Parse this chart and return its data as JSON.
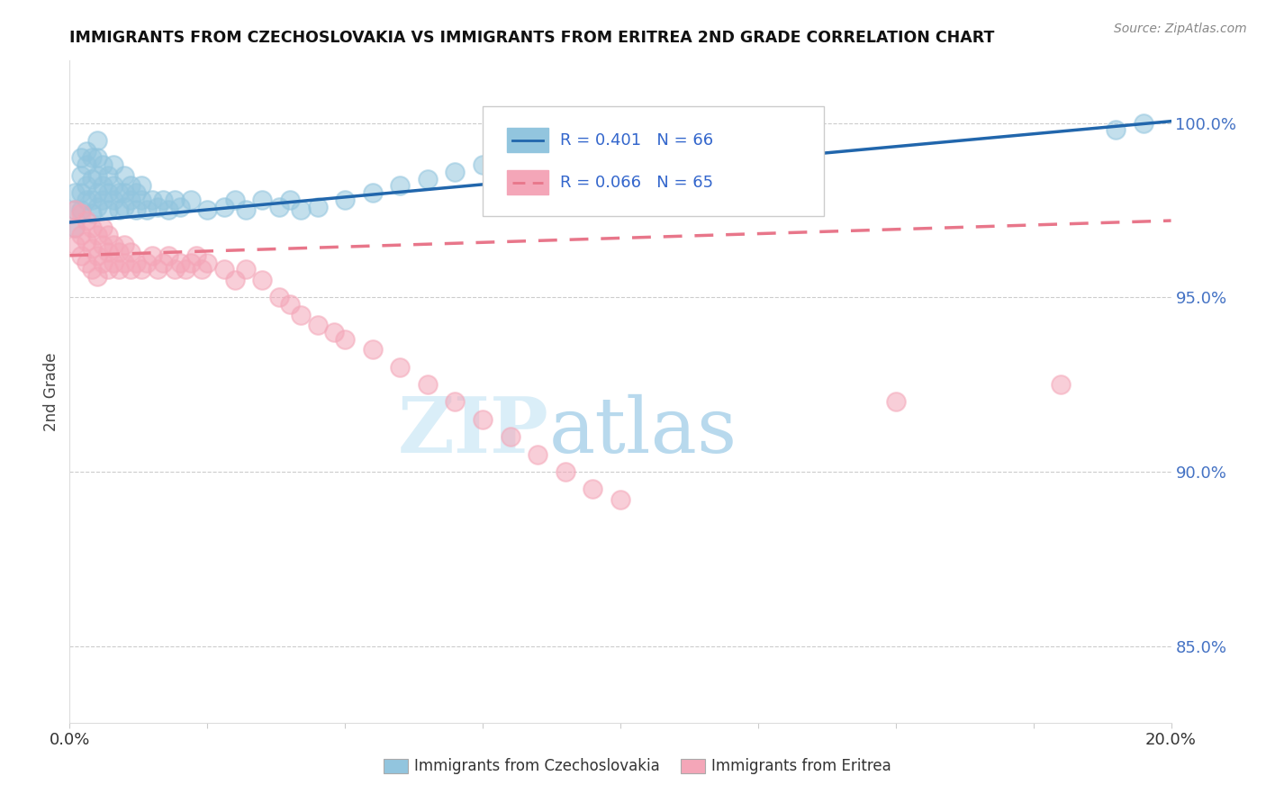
{
  "title": "IMMIGRANTS FROM CZECHOSLOVAKIA VS IMMIGRANTS FROM ERITREA 2ND GRADE CORRELATION CHART",
  "source": "Source: ZipAtlas.com",
  "ylabel": "2nd Grade",
  "label_blue": "Immigrants from Czechoslovakia",
  "label_pink": "Immigrants from Eritrea",
  "blue_color": "#92c5de",
  "pink_color": "#f4a6b8",
  "trend_blue_color": "#2166ac",
  "trend_pink_color": "#e8768a",
  "legend_blue_R": "R = 0.401",
  "legend_blue_N": "N = 66",
  "legend_pink_R": "R = 0.066",
  "legend_pink_N": "N = 65",
  "right_yticks": [
    85.0,
    90.0,
    95.0,
    100.0
  ],
  "xmin": 0.0,
  "xmax": 0.2,
  "ymin": 0.828,
  "ymax": 1.018,
  "blue_scatter_x": [
    0.001,
    0.001,
    0.001,
    0.002,
    0.002,
    0.002,
    0.002,
    0.003,
    0.003,
    0.003,
    0.003,
    0.004,
    0.004,
    0.004,
    0.004,
    0.005,
    0.005,
    0.005,
    0.005,
    0.005,
    0.006,
    0.006,
    0.006,
    0.007,
    0.007,
    0.007,
    0.008,
    0.008,
    0.008,
    0.009,
    0.009,
    0.01,
    0.01,
    0.01,
    0.011,
    0.011,
    0.012,
    0.012,
    0.013,
    0.013,
    0.014,
    0.015,
    0.016,
    0.017,
    0.018,
    0.019,
    0.02,
    0.022,
    0.025,
    0.028,
    0.03,
    0.032,
    0.035,
    0.038,
    0.04,
    0.042,
    0.045,
    0.05,
    0.055,
    0.06,
    0.065,
    0.07,
    0.075,
    0.08,
    0.19,
    0.195
  ],
  "blue_scatter_y": [
    0.97,
    0.975,
    0.98,
    0.975,
    0.98,
    0.985,
    0.99,
    0.978,
    0.982,
    0.988,
    0.992,
    0.974,
    0.978,
    0.984,
    0.99,
    0.976,
    0.98,
    0.985,
    0.99,
    0.995,
    0.978,
    0.982,
    0.988,
    0.975,
    0.98,
    0.985,
    0.978,
    0.982,
    0.988,
    0.975,
    0.98,
    0.976,
    0.98,
    0.985,
    0.978,
    0.982,
    0.975,
    0.98,
    0.978,
    0.982,
    0.975,
    0.978,
    0.976,
    0.978,
    0.975,
    0.978,
    0.976,
    0.978,
    0.975,
    0.976,
    0.978,
    0.975,
    0.978,
    0.976,
    0.978,
    0.975,
    0.976,
    0.978,
    0.98,
    0.982,
    0.984,
    0.986,
    0.988,
    0.99,
    0.998,
    1.0
  ],
  "pink_scatter_x": [
    0.001,
    0.001,
    0.001,
    0.002,
    0.002,
    0.002,
    0.003,
    0.003,
    0.003,
    0.004,
    0.004,
    0.004,
    0.005,
    0.005,
    0.005,
    0.006,
    0.006,
    0.006,
    0.007,
    0.007,
    0.007,
    0.008,
    0.008,
    0.009,
    0.009,
    0.01,
    0.01,
    0.011,
    0.011,
    0.012,
    0.013,
    0.014,
    0.015,
    0.016,
    0.017,
    0.018,
    0.019,
    0.02,
    0.021,
    0.022,
    0.023,
    0.024,
    0.025,
    0.028,
    0.03,
    0.032,
    0.035,
    0.038,
    0.04,
    0.042,
    0.045,
    0.048,
    0.05,
    0.055,
    0.06,
    0.065,
    0.07,
    0.075,
    0.08,
    0.085,
    0.09,
    0.095,
    0.1,
    0.15,
    0.18
  ],
  "pink_scatter_y": [
    0.965,
    0.97,
    0.975,
    0.962,
    0.968,
    0.974,
    0.96,
    0.966,
    0.972,
    0.958,
    0.964,
    0.97,
    0.956,
    0.962,
    0.968,
    0.96,
    0.965,
    0.97,
    0.958,
    0.963,
    0.968,
    0.96,
    0.965,
    0.958,
    0.963,
    0.96,
    0.965,
    0.958,
    0.963,
    0.96,
    0.958,
    0.96,
    0.962,
    0.958,
    0.96,
    0.962,
    0.958,
    0.96,
    0.958,
    0.96,
    0.962,
    0.958,
    0.96,
    0.958,
    0.955,
    0.958,
    0.955,
    0.95,
    0.948,
    0.945,
    0.942,
    0.94,
    0.938,
    0.935,
    0.93,
    0.925,
    0.92,
    0.915,
    0.91,
    0.905,
    0.9,
    0.895,
    0.892,
    0.92,
    0.925
  ]
}
